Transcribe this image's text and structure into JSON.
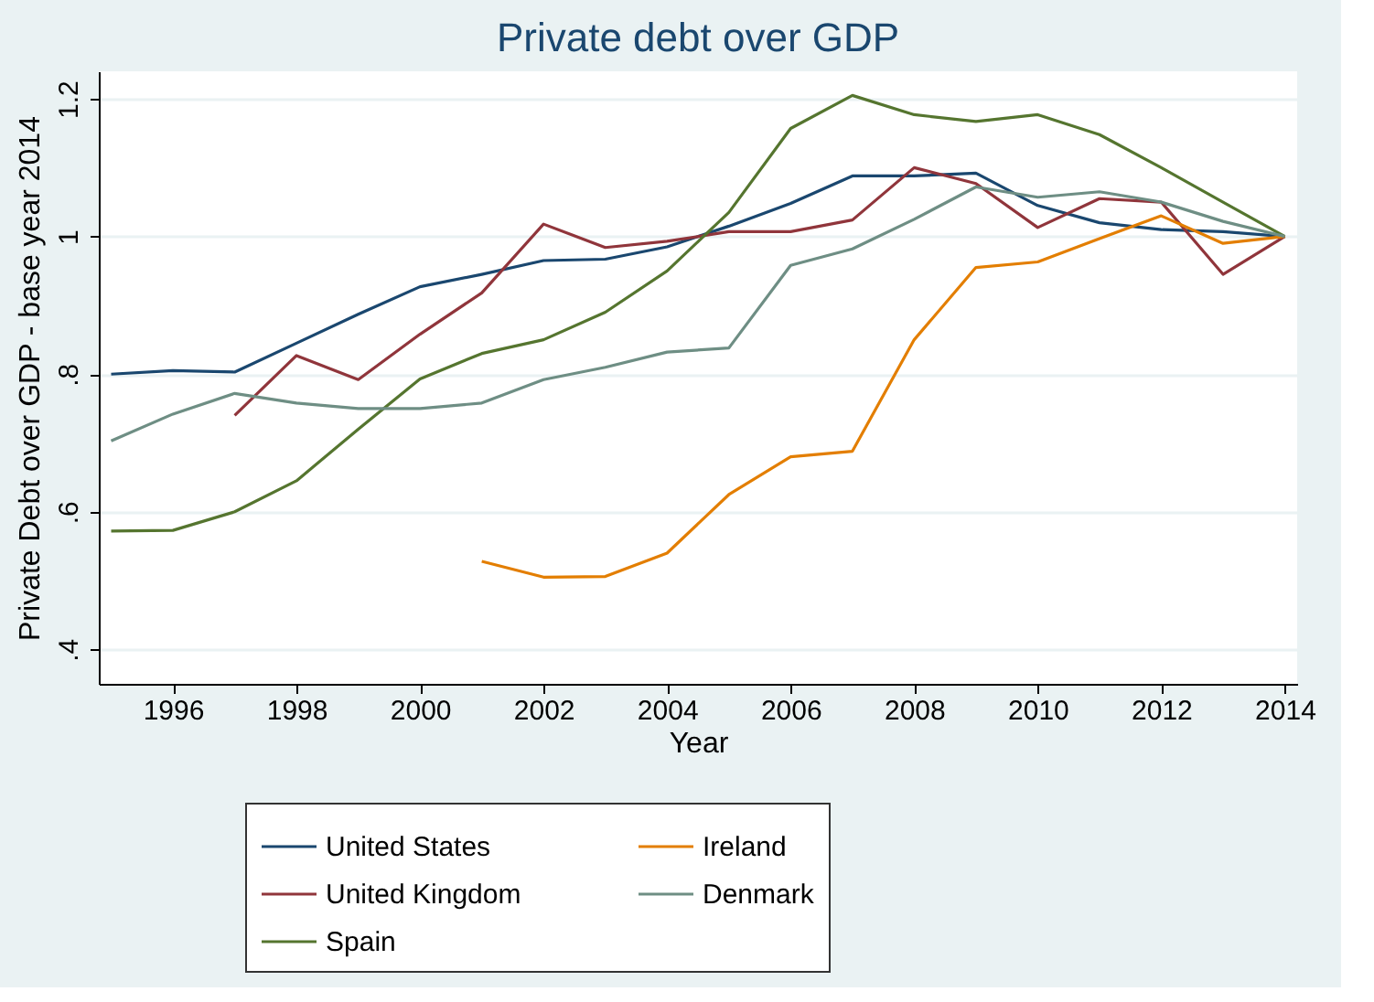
{
  "chart_data": {
    "type": "line",
    "title": "Private debt over GDP",
    "xlabel": "Year",
    "ylabel": "Private Debt over GDP - base year 2014",
    "x": [
      1995,
      1996,
      1997,
      1998,
      1999,
      2000,
      2001,
      2002,
      2003,
      2004,
      2005,
      2006,
      2007,
      2008,
      2009,
      2010,
      2011,
      2012,
      2013,
      2014
    ],
    "series": [
      {
        "name": "United States",
        "color": "#1a476f",
        "values": [
          0.8,
          0.805,
          0.803,
          0.845,
          0.887,
          0.927,
          0.945,
          0.965,
          0.967,
          0.985,
          1.015,
          1.048,
          1.088,
          1.088,
          1.092,
          1.045,
          1.02,
          1.01,
          1.007,
          1.0
        ]
      },
      {
        "name": "United Kingdom",
        "color": "#90353b",
        "values": [
          null,
          null,
          0.74,
          0.827,
          0.792,
          0.858,
          0.918,
          1.018,
          0.984,
          0.993,
          1.007,
          1.007,
          1.024,
          1.1,
          1.077,
          1.013,
          1.055,
          1.05,
          0.945,
          1.0
        ]
      },
      {
        "name": "Spain",
        "color": "#55752f",
        "values": [
          0.572,
          0.573,
          0.6,
          0.645,
          0.72,
          0.793,
          0.83,
          0.85,
          0.89,
          0.95,
          1.035,
          1.157,
          1.205,
          1.177,
          1.167,
          1.177,
          1.148,
          1.1,
          1.05,
          1.0
        ]
      },
      {
        "name": "Ireland",
        "color": "#e37e00",
        "values": [
          null,
          null,
          null,
          null,
          null,
          null,
          0.528,
          0.505,
          0.506,
          0.54,
          0.625,
          0.68,
          0.688,
          0.85,
          0.955,
          0.963,
          0.997,
          1.03,
          0.99,
          1.0
        ]
      },
      {
        "name": "Denmark",
        "color": "#6e8e84",
        "values": [
          0.703,
          0.742,
          0.772,
          0.758,
          0.75,
          0.75,
          0.758,
          0.792,
          0.81,
          0.832,
          0.838,
          0.958,
          0.982,
          1.025,
          1.072,
          1.057,
          1.065,
          1.05,
          1.022,
          1.0
        ]
      }
    ],
    "xlim": [
      1994.8,
      2014.2
    ],
    "xticks": [
      1996,
      1998,
      2000,
      2002,
      2004,
      2006,
      2008,
      2010,
      2012,
      2014
    ],
    "ylim": [
      0.35,
      1.24
    ],
    "yticks": [
      {
        "value": 0.4,
        "label": ".4"
      },
      {
        "value": 0.6,
        "label": ".6"
      },
      {
        "value": 0.8,
        "label": ".8"
      },
      1,
      1.2
    ],
    "grid": "y",
    "legend": "bottom",
    "marker": "none",
    "line_style": "solid"
  }
}
